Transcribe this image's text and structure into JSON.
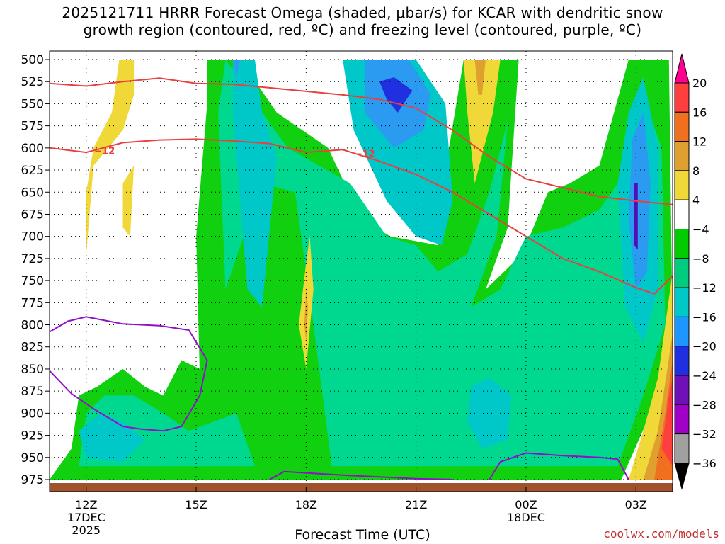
{
  "title": {
    "line1": "2025121711 HRRR Forecast Omega (shaded, μbar/s) for KCAR with dendritic snow",
    "line2": "growth region (contoured, red, ºC) and freezing level (contoured, purple, ºC)"
  },
  "credit": "coolwx.com/models",
  "chart_data": {
    "type": "heatmap",
    "xlabel": "Forecast Time (UTC)",
    "ylabel": "",
    "y_scale": "pressure (reversed)",
    "ylim": [
      975,
      500
    ],
    "xlim": [
      11,
      28
    ],
    "pressure_ticks": [
      500,
      525,
      550,
      575,
      600,
      625,
      650,
      675,
      700,
      725,
      750,
      775,
      800,
      825,
      850,
      875,
      900,
      925,
      950,
      975
    ],
    "x_ticks": [
      {
        "hour": 12,
        "label": "12Z",
        "sub1": "17DEC",
        "sub2": "2025"
      },
      {
        "hour": 15,
        "label": "15Z",
        "sub1": "",
        "sub2": ""
      },
      {
        "hour": 18,
        "label": "18Z",
        "sub1": "",
        "sub2": ""
      },
      {
        "hour": 21,
        "label": "21Z",
        "sub1": "",
        "sub2": ""
      },
      {
        "hour": 24,
        "label": "00Z",
        "sub1": "18DEC",
        "sub2": ""
      },
      {
        "hour": 27,
        "label": "03Z",
        "sub1": "",
        "sub2": ""
      }
    ],
    "grid": true,
    "legend_placement": "right colorbar",
    "colorbar": {
      "labels": [
        "20",
        "16",
        "12",
        "8",
        "4",
        "−4",
        "−8",
        "−12",
        "−16",
        "−20",
        "−24",
        "−28",
        "−32",
        "−36"
      ],
      "colors_top_to_bottom": [
        "#ff0090",
        "#ff3e3e",
        "#f07020",
        "#e0a030",
        "#f0d838",
        "#ffffff",
        "#00cc00",
        "#00cc80",
        "#00c8c8",
        "#1e96ff",
        "#2030e0",
        "#7010b8",
        "#a000c8",
        "#a0a0a0",
        "#000000"
      ]
    },
    "omega_regions": [
      {
        "level": "-4 to -8",
        "color": "#10d010",
        "points": [
          [
            15.3,
            500
          ],
          [
            16.2,
            500
          ],
          [
            17.2,
            560
          ],
          [
            18.6,
            600
          ],
          [
            19.5,
            680
          ],
          [
            20.3,
            700
          ],
          [
            21.6,
            710
          ],
          [
            21.9,
            600
          ],
          [
            22.3,
            500
          ],
          [
            23.8,
            500
          ],
          [
            23.5,
            690
          ],
          [
            22.9,
            760
          ],
          [
            23.9,
            720
          ],
          [
            24.6,
            650
          ],
          [
            25.2,
            640
          ],
          [
            26.0,
            620
          ],
          [
            26.8,
            500
          ],
          [
            27.9,
            500
          ],
          [
            28.0,
            810
          ],
          [
            27.4,
            900
          ],
          [
            26.6,
            975
          ],
          [
            11,
            975
          ],
          [
            11.6,
            940
          ],
          [
            11.8,
            880
          ],
          [
            12.3,
            870
          ],
          [
            13.0,
            850
          ],
          [
            13.6,
            870
          ],
          [
            14.1,
            880
          ],
          [
            14.6,
            840
          ],
          [
            15.6,
            860
          ],
          [
            15.9,
            880
          ],
          [
            15.1,
            860
          ],
          [
            15.0,
            700
          ],
          [
            15.3,
            550
          ]
        ]
      },
      {
        "level": "-8 to -12",
        "color": "#00d890",
        "points": [
          [
            15.8,
            500
          ],
          [
            16.8,
            560
          ],
          [
            17.5,
            600
          ],
          [
            19.2,
            640
          ],
          [
            20.2,
            700
          ],
          [
            21.0,
            710
          ],
          [
            21.6,
            740
          ],
          [
            22.4,
            720
          ],
          [
            23.0,
            650
          ],
          [
            23.5,
            570
          ],
          [
            23.2,
            700
          ],
          [
            22.5,
            780
          ],
          [
            23.3,
            760
          ],
          [
            24.0,
            700
          ],
          [
            25.0,
            690
          ],
          [
            26.0,
            670
          ],
          [
            26.5,
            640
          ],
          [
            27.1,
            530
          ],
          [
            27.7,
            600
          ],
          [
            27.8,
            800
          ],
          [
            27.2,
            880
          ],
          [
            26.5,
            960
          ],
          [
            11.8,
            960
          ],
          [
            12.0,
            900
          ],
          [
            12.5,
            880
          ],
          [
            13.3,
            880
          ],
          [
            14.1,
            900
          ],
          [
            14.8,
            920
          ],
          [
            16.1,
            900
          ],
          [
            16.6,
            960
          ],
          [
            18.7,
            960
          ],
          [
            18.2,
            800
          ],
          [
            17.7,
            650
          ],
          [
            16.8,
            640
          ],
          [
            15.8,
            760
          ],
          [
            15.6,
            560
          ]
        ]
      },
      {
        "level": "-12 to -16",
        "color": "#00c8c8",
        "points": [
          [
            16.0,
            500
          ],
          [
            16.6,
            500
          ],
          [
            16.8,
            560
          ],
          [
            17.2,
            610
          ],
          [
            16.8,
            780
          ],
          [
            16.4,
            760
          ],
          [
            16.0,
            560
          ]
        ]
      },
      {
        "level": "-12 to -16",
        "color": "#00c8c8",
        "points": [
          [
            19.0,
            500
          ],
          [
            21.0,
            500
          ],
          [
            21.8,
            550
          ],
          [
            22.0,
            660
          ],
          [
            21.7,
            710
          ],
          [
            21.0,
            700
          ],
          [
            20.2,
            660
          ],
          [
            19.3,
            580
          ]
        ]
      },
      {
        "level": "-12 to -16",
        "color": "#00c8c8",
        "points": [
          [
            26.8,
            560
          ],
          [
            27.2,
            520
          ],
          [
            27.6,
            600
          ],
          [
            27.6,
            760
          ],
          [
            27.2,
            820
          ],
          [
            26.7,
            780
          ],
          [
            26.5,
            640
          ]
        ]
      },
      {
        "level": "-12 to -16",
        "color": "#00c8c8",
        "points": [
          [
            22.5,
            870
          ],
          [
            23.0,
            860
          ],
          [
            23.6,
            880
          ],
          [
            23.5,
            930
          ],
          [
            22.8,
            940
          ],
          [
            22.4,
            910
          ]
        ]
      },
      {
        "level": "-12 to -16",
        "color": "#00c8c8",
        "points": [
          [
            11.8,
            920
          ],
          [
            12.4,
            900
          ],
          [
            13.0,
            910
          ],
          [
            13.6,
            930
          ],
          [
            13.0,
            955
          ],
          [
            12.0,
            950
          ]
        ]
      },
      {
        "level": "-16 to -20",
        "color": "#2a9bf0",
        "points": [
          [
            19.6,
            500
          ],
          [
            20.8,
            500
          ],
          [
            21.4,
            540
          ],
          [
            21.2,
            580
          ],
          [
            20.4,
            600
          ],
          [
            19.6,
            560
          ]
        ]
      },
      {
        "level": "-16 to -20",
        "color": "#2a9bf0",
        "points": [
          [
            26.9,
            590
          ],
          [
            27.2,
            560
          ],
          [
            27.4,
            640
          ],
          [
            27.3,
            740
          ],
          [
            27.0,
            760
          ],
          [
            26.8,
            680
          ]
        ]
      },
      {
        "level": "-16 to -20",
        "color": "#2a9bf0",
        "points": [
          [
            16.0,
            500
          ],
          [
            16.2,
            500
          ],
          [
            16.1,
            520
          ]
        ]
      },
      {
        "level": "-20 to -24",
        "color": "#2030e0",
        "points": [
          [
            20.0,
            525
          ],
          [
            20.4,
            520
          ],
          [
            20.9,
            535
          ],
          [
            20.5,
            560
          ],
          [
            20.2,
            545
          ]
        ]
      },
      {
        "level": "-24 to -28",
        "color": "#5010b8",
        "points": [
          [
            26.95,
            640
          ],
          [
            27.05,
            640
          ],
          [
            27.05,
            715
          ],
          [
            26.95,
            710
          ]
        ]
      },
      {
        "level": "4 to 8",
        "color": "#f0d838",
        "points": [
          [
            12.9,
            500
          ],
          [
            13.3,
            500
          ],
          [
            13.3,
            540
          ],
          [
            13.0,
            580
          ],
          [
            12.2,
            620
          ],
          [
            12.0,
            720
          ],
          [
            12.0,
            650
          ],
          [
            12.2,
            600
          ],
          [
            12.7,
            560
          ]
        ]
      },
      {
        "level": "4 to 8",
        "color": "#f0d838",
        "points": [
          [
            13.0,
            640
          ],
          [
            13.3,
            620
          ],
          [
            13.2,
            700
          ],
          [
            13.0,
            690
          ]
        ]
      },
      {
        "level": "4 to 8",
        "color": "#f0d838",
        "points": [
          [
            18.0,
            730
          ],
          [
            18.1,
            700
          ],
          [
            18.2,
            760
          ],
          [
            18.0,
            850
          ],
          [
            17.8,
            800
          ]
        ]
      },
      {
        "level": "4 to 8",
        "color": "#f0d838",
        "points": [
          [
            22.3,
            500
          ],
          [
            23.3,
            500
          ],
          [
            23.1,
            560
          ],
          [
            22.6,
            640
          ],
          [
            22.4,
            560
          ]
        ]
      },
      {
        "level": "4 to 8",
        "color": "#f0d838",
        "points": [
          [
            28.0,
            740
          ],
          [
            28.0,
            975
          ],
          [
            26.8,
            975
          ],
          [
            27.2,
            920
          ],
          [
            27.6,
            860
          ]
        ]
      },
      {
        "level": "8 to 12",
        "color": "#e0a030",
        "points": [
          [
            22.6,
            500
          ],
          [
            22.9,
            500
          ],
          [
            22.8,
            540
          ],
          [
            22.7,
            540
          ]
        ]
      },
      {
        "level": "8 to 12",
        "color": "#e0a030",
        "points": [
          [
            18.0,
            760
          ],
          [
            18.05,
            780
          ],
          [
            18.0,
            820
          ],
          [
            17.95,
            800
          ]
        ]
      },
      {
        "level": "8 to 12",
        "color": "#e0a030",
        "points": [
          [
            28.0,
            810
          ],
          [
            28.0,
            975
          ],
          [
            27.2,
            975
          ],
          [
            27.6,
            920
          ]
        ]
      },
      {
        "level": "12 to 16",
        "color": "#f07020",
        "points": [
          [
            28.0,
            840
          ],
          [
            28.0,
            975
          ],
          [
            27.5,
            975
          ],
          [
            27.8,
            900
          ]
        ]
      },
      {
        "level": "16 to 20",
        "color": "#ff3e3e",
        "points": [
          [
            28.0,
            860
          ],
          [
            28.0,
            960
          ],
          [
            27.7,
            940
          ],
          [
            27.9,
            880
          ]
        ]
      }
    ],
    "dgz_minus12": [
      [
        11,
        600
      ],
      [
        12,
        605
      ],
      [
        13,
        594
      ],
      [
        14,
        591
      ],
      [
        15,
        590
      ],
      [
        16,
        592
      ],
      [
        17,
        595
      ],
      [
        18,
        605
      ],
      [
        19,
        602
      ],
      [
        20,
        615
      ],
      [
        21,
        630
      ],
      [
        22,
        650
      ],
      [
        23,
        675
      ],
      [
        24,
        700
      ],
      [
        25,
        725
      ],
      [
        26,
        740
      ],
      [
        27,
        758
      ],
      [
        27.5,
        765
      ],
      [
        28,
        745
      ]
    ],
    "dgz_label": "−12",
    "dgz_upper": [
      [
        11,
        527
      ],
      [
        12,
        530
      ],
      [
        13,
        525
      ],
      [
        14,
        521
      ],
      [
        15,
        527
      ],
      [
        16,
        528
      ],
      [
        17,
        532
      ],
      [
        18,
        536
      ],
      [
        19,
        540
      ],
      [
        20,
        545
      ],
      [
        21,
        555
      ],
      [
        22,
        580
      ],
      [
        23,
        610
      ],
      [
        24,
        635
      ],
      [
        25,
        645
      ],
      [
        26,
        655
      ],
      [
        27,
        660
      ],
      [
        28,
        664
      ]
    ],
    "freezing_level": [
      [
        11,
        808
      ],
      [
        11.5,
        796
      ],
      [
        12,
        791
      ],
      [
        13,
        799
      ],
      [
        14,
        801
      ],
      [
        14.8,
        806
      ],
      [
        15.3,
        840
      ],
      [
        15.1,
        880
      ],
      [
        14.6,
        915
      ],
      [
        14.1,
        920
      ],
      [
        13.5,
        918
      ],
      [
        13,
        915
      ],
      [
        12.2,
        895
      ],
      [
        11.6,
        878
      ],
      [
        11,
        852
      ]
    ],
    "freezing_level_2": [
      [
        17,
        975
      ],
      [
        17.4,
        966
      ],
      [
        19,
        970
      ],
      [
        20,
        972
      ],
      [
        21,
        974
      ],
      [
        22.0,
        975
      ]
    ],
    "freezing_level_3": [
      [
        23.0,
        975
      ],
      [
        23.3,
        955
      ],
      [
        24,
        945
      ],
      [
        25,
        948
      ],
      [
        26,
        950
      ],
      [
        26.5,
        952
      ],
      [
        26.8,
        975
      ]
    ]
  }
}
